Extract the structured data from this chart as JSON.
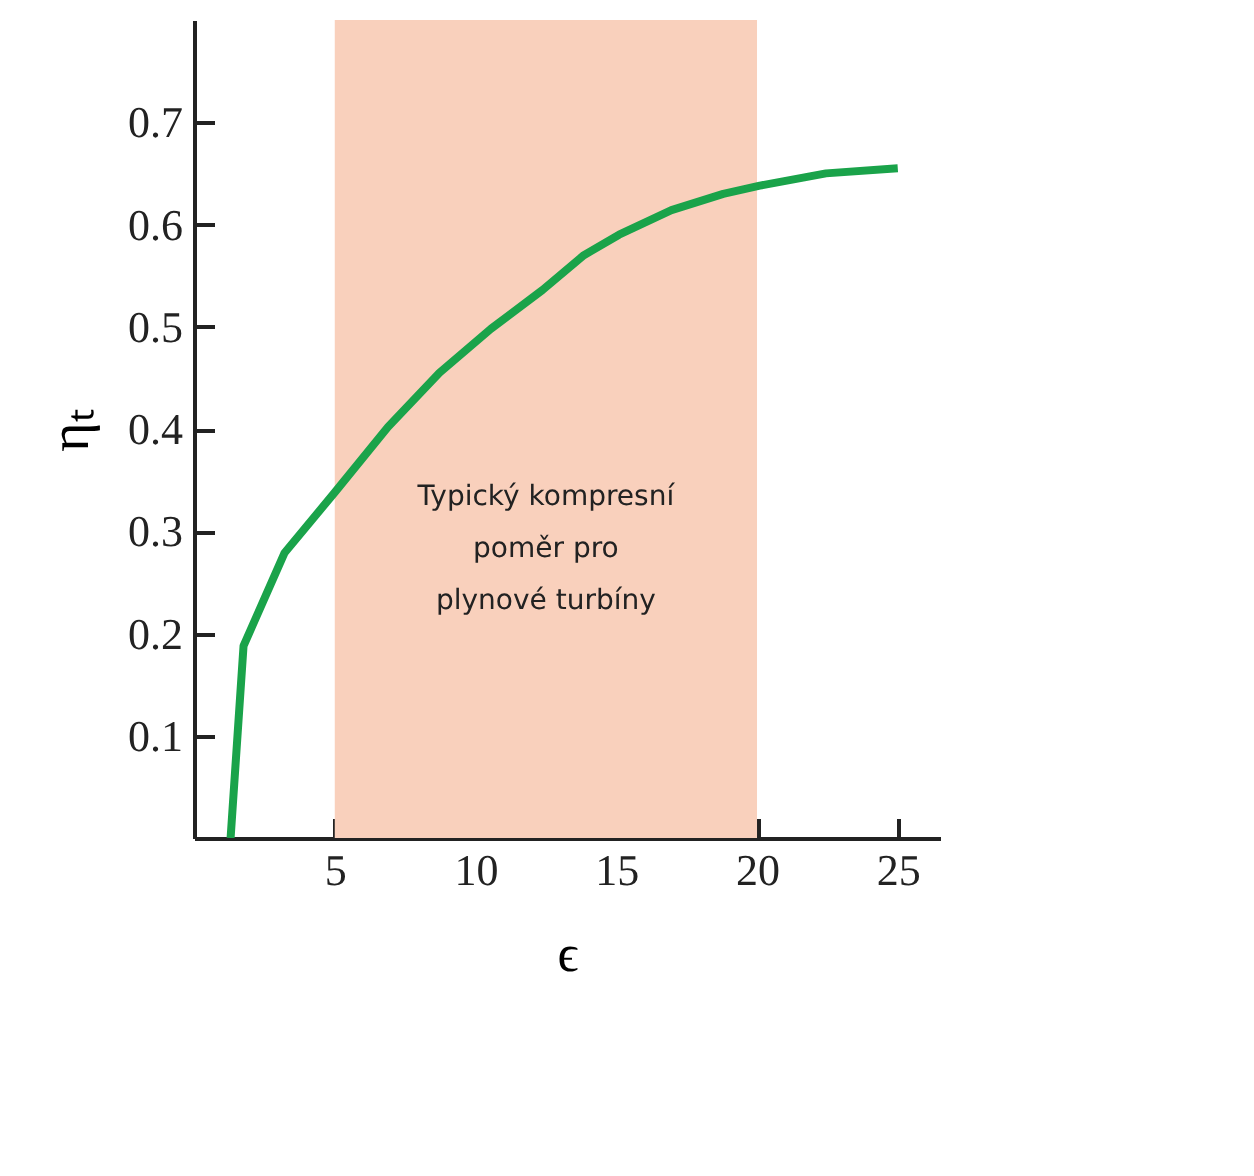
{
  "chart_data": {
    "type": "line",
    "xlabel": "ϵ",
    "ylabel": "ηₜ",
    "x": [
      1.3,
      1.76,
      3.22,
      5,
      6.89,
      8.72,
      10.55,
      12.38,
      13.85,
      15.1,
      16.96,
      18.8,
      20.1,
      22.45,
      25
    ],
    "series": [
      {
        "color": "#1aa34a",
        "values": [
          0,
          0.188,
          0.279,
          0.338,
          0.402,
          0.455,
          0.498,
          0.536,
          0.57,
          0.59,
          0.614,
          0.63,
          0.638,
          0.65,
          0.655
        ]
      }
    ],
    "xlim": [
      0,
      26.5
    ],
    "xticks": [
      5,
      10,
      15,
      20,
      25
    ],
    "ylim": [
      0,
      0.8
    ],
    "yticks": [
      0.1,
      0.2,
      0.3,
      0.4,
      0.5,
      0.6,
      0.7
    ],
    "bands": [
      {
        "axis": "x",
        "from": 5,
        "to": 20,
        "label": "Typický kompresní\npoměr pro\nplynové turbíny",
        "color": "#f9d0bc"
      }
    ],
    "grid": false,
    "marker": "none",
    "line_style": "solid"
  }
}
